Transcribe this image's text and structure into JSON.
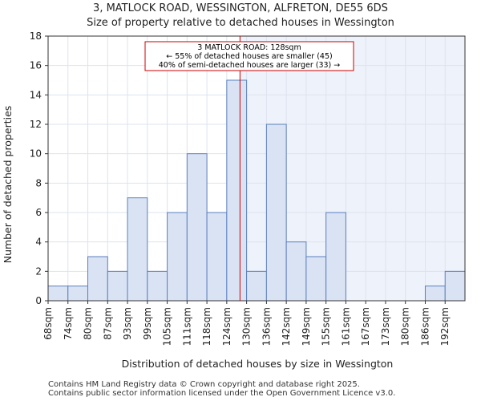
{
  "chart_data": {
    "type": "bar",
    "title": "3, MATLOCK ROAD, WESSINGTON, ALFRETON, DE55 6DS",
    "subtitle": "Size of property relative to detached houses in Wessington",
    "xlabel": "Distribution of detached houses by size in Wessington",
    "ylabel": "Number of detached properties",
    "categories": [
      "68sqm",
      "74sqm",
      "80sqm",
      "87sqm",
      "93sqm",
      "99sqm",
      "105sqm",
      "111sqm",
      "118sqm",
      "124sqm",
      "130sqm",
      "136sqm",
      "142sqm",
      "149sqm",
      "155sqm",
      "161sqm",
      "167sqm",
      "173sqm",
      "180sqm",
      "186sqm",
      "192sqm"
    ],
    "values": [
      1,
      1,
      3,
      2,
      7,
      2,
      6,
      10,
      6,
      15,
      2,
      12,
      4,
      3,
      6,
      0,
      0,
      0,
      0,
      1,
      2
    ],
    "ylim": [
      0,
      18
    ],
    "yticks": [
      0,
      2,
      4,
      6,
      8,
      10,
      12,
      14,
      16,
      18
    ],
    "marker": {
      "value_sqm": 128,
      "lines": [
        "3 MATLOCK ROAD: 128sqm",
        "← 55% of detached houses are smaller (45)",
        "40% of semi-detached houses are larger (33) →"
      ]
    },
    "colors": {
      "bar_fill": "#dae3f3",
      "bar_edge": "#5b7fbf",
      "marker": "#cc0000",
      "shade": "#eef2fa"
    }
  },
  "footer": {
    "line1": "Contains HM Land Registry data © Crown copyright and database right 2025.",
    "line2": "Contains public sector information licensed under the Open Government Licence v3.0."
  }
}
